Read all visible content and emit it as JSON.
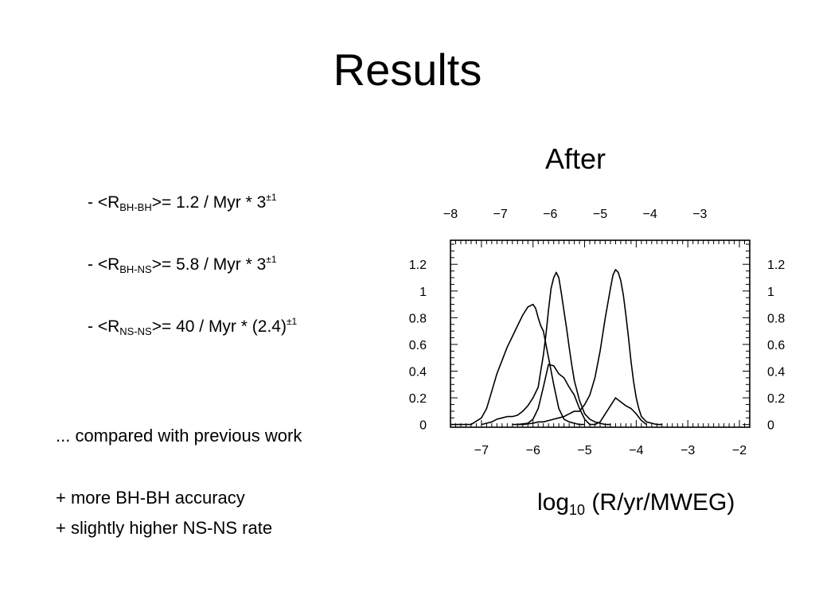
{
  "slide": {
    "title": "Results",
    "panel_title": "After",
    "rates": [
      {
        "prefix": "- <R",
        "sub": "BH-BH",
        "middle": ">= 1.2 / Myr  * 3",
        "sup": "±1"
      },
      {
        "prefix": "- <R",
        "sub": "BH-NS",
        "middle": ">= 5.8 / Myr * 3",
        "sup": "±1"
      },
      {
        "prefix": "- <R",
        "sub": "NS-NS",
        "middle": ">= 40 / Myr * (2.4)",
        "sup": "±1"
      }
    ],
    "comparison": "... compared with previous work",
    "notes": [
      "+ more BH-BH accuracy",
      "+ slightly higher NS-NS rate"
    ],
    "xlabel_main": "log",
    "xlabel_sub": "10",
    "xlabel_rest": " (R/yr/MWEG)"
  },
  "chart_data": {
    "type": "line",
    "title": "After",
    "xlabel": "log10 (R/yr/MWEG)",
    "ylabel": "",
    "xlim": [
      -7.6,
      -1.8
    ],
    "ylim": [
      -0.02,
      1.38
    ],
    "bottom_ticks": [
      "-7",
      "-6",
      "-5",
      "-4",
      "-3",
      "-2"
    ],
    "top_ticks": [
      "-8",
      "-7",
      "-6",
      "-5",
      "-4",
      "-3"
    ],
    "y_ticks": [
      "0",
      "0.2",
      "0.4",
      "0.6",
      "0.8",
      "1",
      "1.2"
    ],
    "grid": false,
    "series": [
      {
        "color": "#000000",
        "x": [
          -7.6,
          -7.4,
          -7.2,
          -7.0,
          -6.9,
          -6.8,
          -6.7,
          -6.6,
          -6.5,
          -6.4,
          -6.3,
          -6.2,
          -6.1,
          -6.0,
          -5.95,
          -5.9,
          -5.85,
          -5.8,
          -5.7,
          -5.6,
          -5.5,
          -5.4,
          -5.3,
          -5.2,
          -5.1,
          -5.0
        ],
        "y": [
          0.0,
          0.0,
          0.0,
          0.05,
          0.12,
          0.25,
          0.38,
          0.48,
          0.58,
          0.66,
          0.74,
          0.82,
          0.88,
          0.9,
          0.87,
          0.8,
          0.74,
          0.7,
          0.5,
          0.3,
          0.12,
          0.04,
          0.02,
          0.01,
          0.0,
          0.0
        ]
      },
      {
        "color": "#000000",
        "x": [
          -7.0,
          -6.9,
          -6.8,
          -6.7,
          -6.6,
          -6.5,
          -6.4,
          -6.3,
          -6.2,
          -6.1,
          -6.0,
          -5.9,
          -5.85,
          -5.8,
          -5.75,
          -5.7,
          -5.65,
          -5.6,
          -5.55,
          -5.5,
          -5.45,
          -5.4,
          -5.35,
          -5.3,
          -5.25,
          -5.2,
          -5.1,
          -5.0,
          -4.9,
          -4.8,
          -4.7,
          -4.6,
          -4.5
        ],
        "y": [
          0.0,
          0.01,
          0.02,
          0.04,
          0.05,
          0.06,
          0.06,
          0.07,
          0.1,
          0.14,
          0.2,
          0.28,
          0.4,
          0.52,
          0.67,
          0.86,
          1.02,
          1.1,
          1.14,
          1.1,
          0.98,
          0.85,
          0.72,
          0.58,
          0.45,
          0.33,
          0.18,
          0.08,
          0.04,
          0.02,
          0.01,
          0.0,
          0.0
        ]
      },
      {
        "color": "#000000",
        "x": [
          -6.4,
          -6.2,
          -6.0,
          -5.9,
          -5.8,
          -5.7,
          -5.6,
          -5.5,
          -5.4,
          -5.3,
          -5.2,
          -5.1,
          -5.0,
          -4.9,
          -4.8,
          -4.7,
          -4.6,
          -4.5,
          -4.45,
          -4.4,
          -4.35,
          -4.3,
          -4.25,
          -4.2,
          -4.15,
          -4.1,
          -4.05,
          -4.0,
          -3.95,
          -3.9,
          -3.8,
          -3.7,
          -3.6,
          -3.5
        ],
        "y": [
          0.0,
          0.0,
          0.01,
          0.02,
          0.02,
          0.03,
          0.04,
          0.05,
          0.06,
          0.08,
          0.1,
          0.1,
          0.15,
          0.22,
          0.35,
          0.55,
          0.8,
          1.02,
          1.12,
          1.16,
          1.14,
          1.08,
          0.97,
          0.82,
          0.65,
          0.47,
          0.32,
          0.2,
          0.12,
          0.06,
          0.02,
          0.01,
          0.0,
          0.0
        ]
      },
      {
        "color": "#000000",
        "x": [
          -6.3,
          -6.1,
          -6.0,
          -5.9,
          -5.8,
          -5.7,
          -5.6,
          -5.5,
          -5.4,
          -5.3,
          -5.2,
          -5.1,
          -5.0,
          -4.9,
          -4.8,
          -4.7,
          -4.6,
          -4.5,
          -4.4,
          -4.3,
          -4.2,
          -4.1,
          -4.0,
          -3.9,
          -3.8
        ],
        "y": [
          0.0,
          0.01,
          0.04,
          0.12,
          0.28,
          0.45,
          0.44,
          0.38,
          0.35,
          0.28,
          0.22,
          0.12,
          0.04,
          0.0,
          0.0,
          0.02,
          0.08,
          0.14,
          0.2,
          0.17,
          0.14,
          0.12,
          0.08,
          0.03,
          0.0
        ]
      }
    ]
  }
}
